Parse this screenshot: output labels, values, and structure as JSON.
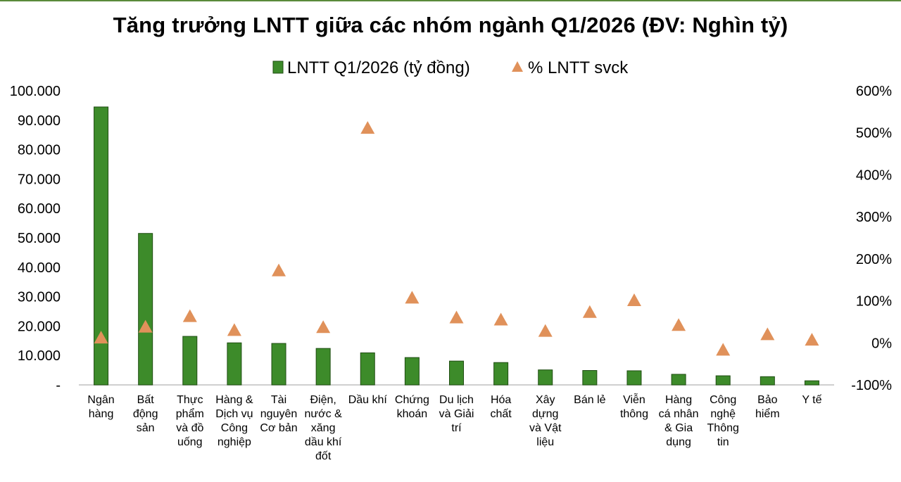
{
  "chart_data": {
    "type": "bar",
    "title": "Tăng trưởng LNTT giữa các nhóm ngành Q1/2026 (ĐV: Nghìn tỷ)",
    "categories": [
      [
        "Ngân",
        "hàng"
      ],
      [
        "Bất",
        "động",
        "sản"
      ],
      [
        "Thực",
        "phẩm",
        "và đồ",
        "uống"
      ],
      [
        "Hàng &",
        "Dịch vụ",
        "Công",
        "nghiệp"
      ],
      [
        "Tài",
        "nguyên",
        "Cơ bản"
      ],
      [
        "Điện,",
        "nước &",
        "xăng",
        "dầu khí",
        "đốt"
      ],
      [
        "Dầu khí"
      ],
      [
        "Chứng",
        "khoán"
      ],
      [
        "Du lịch",
        "và Giải",
        "trí"
      ],
      [
        "Hóa",
        "chất"
      ],
      [
        "Xây",
        "dựng",
        "và Vật",
        "liệu"
      ],
      [
        "Bán lẻ"
      ],
      [
        "Viễn",
        "thông"
      ],
      [
        "Hàng",
        "cá nhân",
        "& Gia",
        "dụng"
      ],
      [
        "Công",
        "nghệ",
        "Thông",
        "tin"
      ],
      [
        "Bảo",
        "hiểm"
      ],
      [
        "Y tế"
      ]
    ],
    "series": [
      {
        "name": "LNTT Q1/2026 (tỷ đồng)",
        "kind": "bar",
        "axis": "left",
        "color": "#3d8b2a",
        "values": [
          94500,
          51500,
          16500,
          14300,
          14100,
          12400,
          10900,
          9300,
          8100,
          7600,
          5100,
          4900,
          4800,
          3600,
          3100,
          2800,
          1400
        ]
      },
      {
        "name": "% LNTT svck",
        "kind": "marker-triangle",
        "axis": "right",
        "color": "#e0915a",
        "values": [
          12,
          38,
          63,
          30,
          172,
          37,
          511,
          107,
          60,
          55,
          28,
          73,
          101,
          42,
          -17,
          20,
          7
        ]
      }
    ],
    "y_left": {
      "ylim": [
        0,
        100000
      ],
      "ticks": [
        0,
        10000,
        20000,
        30000,
        40000,
        50000,
        60000,
        70000,
        80000,
        90000,
        100000
      ],
      "tick_labels": [
        "-",
        "10.000",
        "20.000",
        "30.000",
        "40.000",
        "50.000",
        "60.000",
        "70.000",
        "80.000",
        "90.000",
        "100.000"
      ]
    },
    "y_right": {
      "ylim": [
        -100,
        600
      ],
      "ticks": [
        -100,
        0,
        100,
        200,
        300,
        400,
        500,
        600
      ],
      "tick_labels": [
        "-100%",
        "0%",
        "100%",
        "200%",
        "300%",
        "400%",
        "500%",
        "600%"
      ]
    },
    "grid": false,
    "legend": "top-center"
  }
}
